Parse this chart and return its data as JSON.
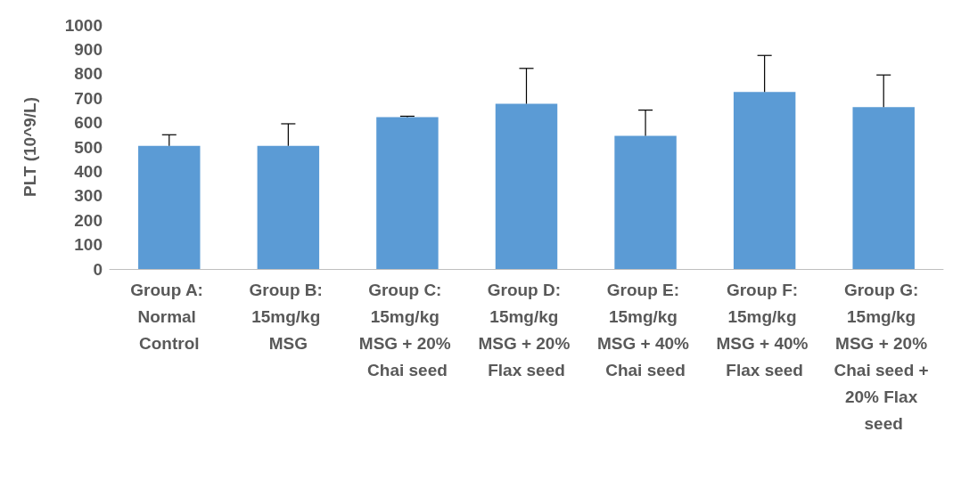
{
  "chart_data": {
    "type": "bar",
    "ylabel": "PLT (10^9/L)",
    "categories": [
      "Group A: Normal Control",
      "Group B: 15mg/kg MSG",
      "Group C: 15mg/kg MSG + 20% Chai seed",
      "Group D: 15mg/kg MSG + 20% Flax seed",
      "Group E: 15mg/kg MSG + 40% Chai seed",
      "Group F: 15mg/kg MSG + 40% Flax seed",
      "Group G: 15mg/kg MSG + 20% Chai seed + 20% Flax seed"
    ],
    "values": [
      505,
      505,
      622,
      677,
      546,
      725,
      663
    ],
    "errors": [
      [
        505,
        550
      ],
      [
        505,
        595
      ],
      [
        622,
        626
      ],
      [
        677,
        822
      ],
      [
        546,
        651
      ],
      [
        725,
        875
      ],
      [
        663,
        795
      ]
    ],
    "color": "#5b9bd5",
    "ylim": [
      0,
      1000
    ],
    "yticks": [
      0,
      100,
      200,
      300,
      400,
      500,
      600,
      700,
      800,
      900,
      1000
    ],
    "grid": false
  }
}
